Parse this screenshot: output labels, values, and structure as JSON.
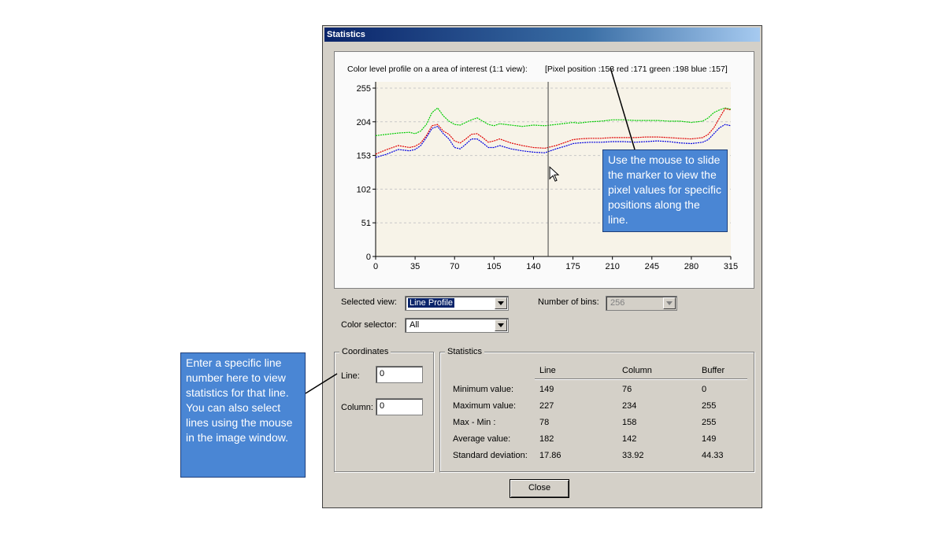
{
  "window": {
    "title": "Statistics"
  },
  "chart": {
    "title": "Color level profile on a area of interest (1:1 view):",
    "pixel_readout": "[Pixel position :153  red :171 green :198 blue :157]"
  },
  "chart_data": {
    "type": "line",
    "xlim": [
      0,
      315
    ],
    "ylim": [
      0,
      255
    ],
    "x_ticks": [
      "0",
      "35",
      "70",
      "105",
      "140",
      "175",
      "210",
      "245",
      "280",
      "315"
    ],
    "y_ticks": [
      "0",
      "51",
      "102",
      "153",
      "204",
      "255"
    ],
    "grid": true,
    "marker_x": 153,
    "x": [
      0,
      10,
      20,
      30,
      35,
      40,
      45,
      50,
      55,
      60,
      65,
      70,
      75,
      80,
      85,
      90,
      95,
      100,
      105,
      110,
      120,
      130,
      140,
      150,
      160,
      170,
      175,
      180,
      190,
      200,
      210,
      220,
      230,
      240,
      250,
      260,
      270,
      280,
      290,
      295,
      300,
      305,
      310,
      315
    ],
    "series": [
      {
        "color": "#00cc00",
        "values": [
          183,
          185,
          187,
          188,
          186,
          190,
          200,
          218,
          225,
          213,
          205,
          200,
          199,
          203,
          207,
          210,
          205,
          200,
          198,
          201,
          199,
          197,
          199,
          198,
          200,
          202,
          203,
          202,
          204,
          205,
          207,
          207,
          206,
          206,
          206,
          205,
          205,
          203,
          205,
          210,
          218,
          222,
          225,
          223
        ]
      },
      {
        "color": "#e00000",
        "values": [
          155,
          162,
          168,
          165,
          167,
          172,
          183,
          198,
          200,
          190,
          185,
          175,
          172,
          178,
          185,
          186,
          180,
          173,
          175,
          178,
          172,
          168,
          165,
          164,
          168,
          174,
          177,
          178,
          179,
          179,
          180,
          180,
          180,
          181,
          181,
          180,
          179,
          178,
          180,
          185,
          195,
          210,
          224,
          222
        ]
      },
      {
        "color": "#0000e0",
        "values": [
          150,
          155,
          162,
          160,
          162,
          168,
          180,
          194,
          197,
          186,
          178,
          165,
          163,
          170,
          178,
          178,
          172,
          165,
          165,
          168,
          163,
          160,
          158,
          157,
          163,
          168,
          171,
          172,
          173,
          173,
          174,
          174,
          173,
          174,
          175,
          174,
          172,
          171,
          173,
          177,
          186,
          195,
          200,
          198
        ]
      }
    ]
  },
  "controls": {
    "selected_view_label": "Selected view:",
    "selected_view_value": "Line Profile",
    "number_of_bins_label": "Number of bins:",
    "number_of_bins_value": "256",
    "color_selector_label": "Color selector:",
    "color_selector_value": "All"
  },
  "coordinates": {
    "legend": "Coordinates",
    "line_label": "Line:",
    "line_value": "0",
    "column_label": "Column:",
    "column_value": "0"
  },
  "statistics": {
    "legend": "Statistics",
    "headers": [
      "Line",
      "Column",
      "Buffer"
    ],
    "rows": [
      {
        "label": "Minimum value:",
        "values": [
          "149",
          "76",
          "0"
        ]
      },
      {
        "label": "Maximum value:",
        "values": [
          "227",
          "234",
          "255"
        ]
      },
      {
        "label": "Max - Min :",
        "values": [
          "78",
          "158",
          "255"
        ]
      },
      {
        "label": "Average value:",
        "values": [
          "182",
          "142",
          "149"
        ]
      },
      {
        "label": "Standard deviation:",
        "values": [
          "17.86",
          "33.92",
          "44.33"
        ]
      }
    ]
  },
  "close_label": "Close",
  "callouts": {
    "marker": "Use the mouse to slide the marker to view the pixel values for specific positions along the line.",
    "line": "Enter a specific line number here to view statistics for that line. You can also select lines using the mouse in the image window."
  }
}
